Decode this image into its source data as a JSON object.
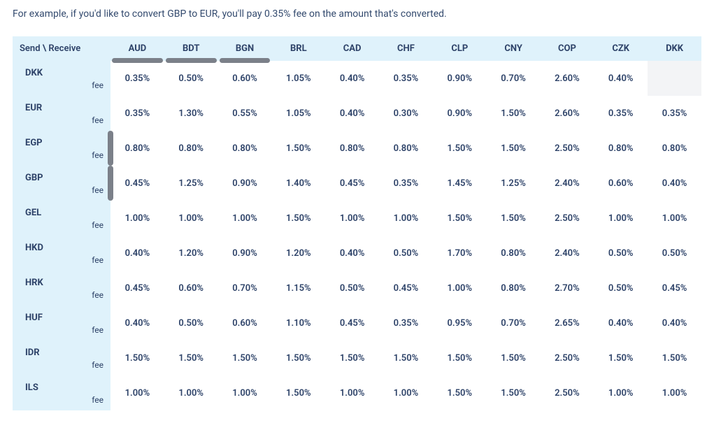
{
  "intro_text": "For example, if you'd like to convert GBP to EUR, you'll pay 0.35% fee on the amount that's converted.",
  "table": {
    "corner_label": "Send \\ Receive",
    "fee_label": "fee",
    "columns": [
      "AUD",
      "BDT",
      "BGN",
      "BRL",
      "CAD",
      "CHF",
      "CLP",
      "CNY",
      "COP",
      "CZK",
      "DKK"
    ],
    "hscroll_thumb_cols": [
      0,
      1,
      2
    ],
    "vscroll_thumb_rows": [
      2,
      3
    ],
    "rows": [
      {
        "label": "DKK",
        "values": [
          "0.35%",
          "0.50%",
          "0.60%",
          "1.05%",
          "0.40%",
          "0.35%",
          "0.90%",
          "0.70%",
          "2.60%",
          "0.40%",
          ""
        ]
      },
      {
        "label": "EUR",
        "values": [
          "0.35%",
          "1.30%",
          "0.55%",
          "1.05%",
          "0.40%",
          "0.30%",
          "0.90%",
          "1.50%",
          "2.60%",
          "0.35%",
          "0.35%"
        ]
      },
      {
        "label": "EGP",
        "values": [
          "0.80%",
          "0.80%",
          "0.80%",
          "1.50%",
          "0.80%",
          "0.80%",
          "1.50%",
          "1.50%",
          "2.50%",
          "0.80%",
          "0.80%"
        ]
      },
      {
        "label": "GBP",
        "values": [
          "0.45%",
          "1.25%",
          "0.90%",
          "1.40%",
          "0.45%",
          "0.35%",
          "1.45%",
          "1.25%",
          "2.40%",
          "0.60%",
          "0.40%"
        ]
      },
      {
        "label": "GEL",
        "values": [
          "1.00%",
          "1.00%",
          "1.00%",
          "1.50%",
          "1.00%",
          "1.00%",
          "1.50%",
          "1.50%",
          "2.50%",
          "1.00%",
          "1.00%"
        ]
      },
      {
        "label": "HKD",
        "values": [
          "0.40%",
          "1.20%",
          "0.90%",
          "1.20%",
          "0.40%",
          "0.50%",
          "1.70%",
          "0.80%",
          "2.40%",
          "0.50%",
          "0.50%"
        ]
      },
      {
        "label": "HRK",
        "values": [
          "0.45%",
          "0.60%",
          "0.70%",
          "1.15%",
          "0.50%",
          "0.45%",
          "1.00%",
          "0.80%",
          "2.70%",
          "0.50%",
          "0.45%"
        ]
      },
      {
        "label": "HUF",
        "values": [
          "0.40%",
          "0.50%",
          "0.60%",
          "1.10%",
          "0.45%",
          "0.35%",
          "0.95%",
          "0.70%",
          "2.65%",
          "0.40%",
          "0.40%"
        ]
      },
      {
        "label": "IDR",
        "values": [
          "1.50%",
          "1.50%",
          "1.50%",
          "1.50%",
          "1.50%",
          "1.50%",
          "1.50%",
          "1.50%",
          "2.50%",
          "1.50%",
          "1.50%"
        ]
      },
      {
        "label": "ILS",
        "values": [
          "1.00%",
          "1.00%",
          "1.00%",
          "1.50%",
          "1.00%",
          "1.00%",
          "1.50%",
          "1.50%",
          "2.50%",
          "1.00%",
          "1.00%"
        ]
      }
    ]
  },
  "colors": {
    "header_bg": "#dff2fb",
    "text": "#2e4369",
    "empty_cell_bg": "#f3f4f6",
    "scroll_thumb": "#7b8089",
    "page_bg": "#ffffff"
  }
}
